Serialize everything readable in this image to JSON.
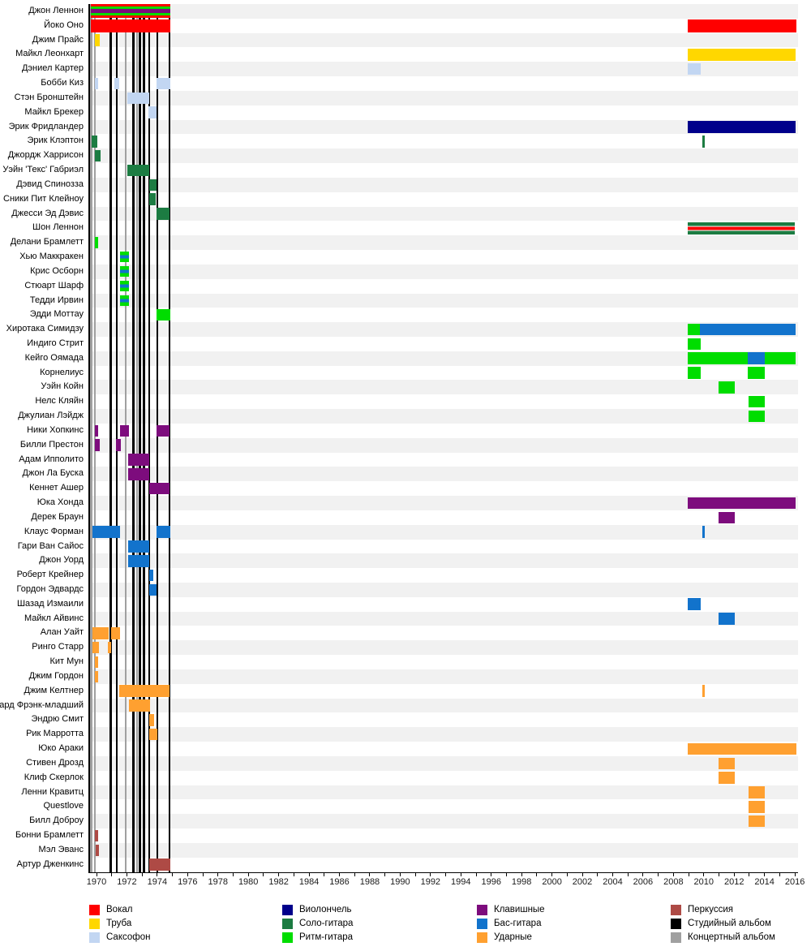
{
  "chart_data": {
    "type": "timeline",
    "title": "",
    "x_axis": {
      "min": 1969.45,
      "max": 2016.2,
      "tick_year_start": 1970,
      "tick_year_end": 2016,
      "tick_step": 1,
      "label_step": 2
    },
    "roles": {
      "vocal": {
        "label": "Вокал",
        "color": "#FF0000"
      },
      "trumpet": {
        "label": "Труба",
        "color": "#FFD700"
      },
      "sax": {
        "label": "Саксофон",
        "color": "#C2D6F2"
      },
      "cello": {
        "label": "Виолончель",
        "color": "#00008B"
      },
      "solo": {
        "label": "Соло-гитара",
        "color": "#1C7C42"
      },
      "rhythm": {
        "label": "Ритм-гитара",
        "color": "#00DD00"
      },
      "keys": {
        "label": "Клавишные",
        "color": "#7D0C7D"
      },
      "bass": {
        "label": "Бас-гитара",
        "color": "#1273CC"
      },
      "drums": {
        "label": "Ударные",
        "color": "#FFA030"
      },
      "perc": {
        "label": "Перкуссия",
        "color": "#AE4A45"
      }
    },
    "albums": {
      "studio_label": "Студийный альбом",
      "live_label": "Концертный альбом",
      "studio_color": "#000000",
      "live_color": "#A0A0A0",
      "lines": [
        {
          "year": 1969.65,
          "type": "live"
        },
        {
          "year": 1969.89,
          "type": "live"
        },
        {
          "year": 1970.93,
          "type": "studio"
        },
        {
          "year": 1971.34,
          "type": "studio"
        },
        {
          "year": 1971.92,
          "type": "live"
        },
        {
          "year": 1972.43,
          "type": "studio"
        },
        {
          "year": 1972.67,
          "type": "live"
        },
        {
          "year": 1972.86,
          "type": "studio"
        },
        {
          "year": 1973.13,
          "type": "studio"
        },
        {
          "year": 1973.47,
          "type": "studio"
        },
        {
          "year": 1974.01,
          "type": "studio"
        },
        {
          "year": 1974.81,
          "type": "studio"
        }
      ]
    },
    "members": [
      {
        "name": "Джон Леннон",
        "segments": [
          {
            "from": 1969.63,
            "to": 1974.86,
            "stack": [
              "vocal",
              "rhythm",
              "keys",
              "rhythm",
              "vocal"
            ],
            "weights": [
              3,
              3,
              5,
              3,
              3
            ],
            "h": 17
          }
        ]
      },
      {
        "name": "Йоко Оно",
        "segments": [
          {
            "from": 1969.63,
            "to": 1974.86,
            "role": "vocal",
            "h": 16
          },
          {
            "from": 2008.95,
            "to": 2016.1,
            "role": "vocal",
            "h": 16
          }
        ]
      },
      {
        "name": "Джим Прайс",
        "segments": [
          {
            "from": 1969.9,
            "to": 1970.22,
            "role": "trumpet"
          }
        ]
      },
      {
        "name": "Майкл Леонхарт",
        "segments": [
          {
            "from": 2008.95,
            "to": 2016.05,
            "role": "trumpet"
          }
        ]
      },
      {
        "name": "Дэниел Картер",
        "segments": [
          {
            "from": 2008.95,
            "to": 2009.8,
            "role": "sax"
          }
        ]
      },
      {
        "name": "Бобби Киз",
        "segments": [
          {
            "from": 1969.9,
            "to": 1970.12,
            "role": "sax"
          },
          {
            "from": 1971.19,
            "to": 1971.5,
            "role": "sax"
          },
          {
            "from": 1973.94,
            "to": 1974.86,
            "role": "sax"
          }
        ]
      },
      {
        "name": "Стэн Бронштейн",
        "segments": [
          {
            "from": 1972.05,
            "to": 1973.47,
            "role": "sax"
          }
        ]
      },
      {
        "name": "Майкл Брекер",
        "segments": [
          {
            "from": 1973.4,
            "to": 1973.97,
            "role": "sax"
          }
        ]
      },
      {
        "name": "Эрик Фридландер",
        "segments": [
          {
            "from": 2008.95,
            "to": 2016.05,
            "role": "cello"
          }
        ]
      },
      {
        "name": "Эрик Клэптон",
        "segments": [
          {
            "from": 1969.66,
            "to": 1970.07,
            "role": "solo"
          },
          {
            "from": 2009.93,
            "to": 2010.07,
            "role": "solo"
          }
        ]
      },
      {
        "name": "Джордж Харрисон",
        "segments": [
          {
            "from": 1969.9,
            "to": 1970.25,
            "role": "solo"
          }
        ]
      },
      {
        "name": "Уэйн 'Текс' Габриэл",
        "segments": [
          {
            "from": 1972.05,
            "to": 1973.47,
            "role": "solo"
          }
        ]
      },
      {
        "name": "Дэвид Спинозза",
        "segments": [
          {
            "from": 1973.46,
            "to": 1973.94,
            "role": "solo"
          }
        ]
      },
      {
        "name": "Сники Пит Клейноу",
        "segments": [
          {
            "from": 1973.46,
            "to": 1973.92,
            "role": "solo"
          }
        ]
      },
      {
        "name": "Джесси Эд Дэвис",
        "segments": [
          {
            "from": 1973.94,
            "to": 1974.83,
            "role": "solo"
          }
        ]
      },
      {
        "name": "Шон Леннон",
        "segments": [
          {
            "from": 2008.95,
            "to": 2016.0,
            "stack": [
              "solo",
              "vocal",
              "solo"
            ],
            "weights": [
              4,
              4,
              4
            ],
            "gaps": true,
            "h": 15
          }
        ]
      },
      {
        "name": "Делани Брамлетт",
        "segments": [
          {
            "from": 1969.9,
            "to": 1970.1,
            "role": "rhythm"
          }
        ]
      },
      {
        "name": "Хью Маккракен",
        "segments": [
          {
            "from": 1971.53,
            "to": 1972.15,
            "stack": [
              "rhythm",
              "bass",
              "rhythm"
            ],
            "weights": [
              4,
              4,
              4
            ],
            "h": 13
          }
        ]
      },
      {
        "name": "Крис Осборн",
        "segments": [
          {
            "from": 1971.53,
            "to": 1972.15,
            "stack": [
              "rhythm",
              "bass",
              "rhythm"
            ],
            "weights": [
              4,
              4,
              4
            ],
            "h": 13
          }
        ]
      },
      {
        "name": "Стюарт Шарф",
        "segments": [
          {
            "from": 1971.53,
            "to": 1972.15,
            "stack": [
              "rhythm",
              "bass",
              "rhythm"
            ],
            "weights": [
              4,
              4,
              4
            ],
            "h": 13
          }
        ]
      },
      {
        "name": "Тедди Ирвин",
        "segments": [
          {
            "from": 1971.53,
            "to": 1972.15,
            "stack": [
              "rhythm",
              "bass",
              "rhythm"
            ],
            "weights": [
              4,
              4,
              4
            ],
            "h": 13
          }
        ]
      },
      {
        "name": "Эдди Моттау",
        "segments": [
          {
            "from": 1973.94,
            "to": 1974.86,
            "role": "rhythm"
          }
        ]
      },
      {
        "name": "Хиротака Симидзу",
        "segments": [
          {
            "from": 2008.95,
            "to": 2009.75,
            "role": "rhythm"
          },
          {
            "from": 2009.75,
            "to": 2016.05,
            "role": "bass"
          }
        ]
      },
      {
        "name": "Индиго Стрит",
        "segments": [
          {
            "from": 2008.95,
            "to": 2009.8,
            "role": "rhythm"
          }
        ]
      },
      {
        "name": "Кейго Оямада",
        "segments": [
          {
            "from": 2008.95,
            "to": 2012.9,
            "role": "rhythm"
          },
          {
            "from": 2012.9,
            "to": 2014.0,
            "role": "bass"
          },
          {
            "from": 2014.0,
            "to": 2016.05,
            "role": "rhythm"
          }
        ]
      },
      {
        "name": "Корнелиус",
        "segments": [
          {
            "from": 2008.95,
            "to": 2009.8,
            "role": "rhythm"
          },
          {
            "from": 2012.9,
            "to": 2014.0,
            "role": "rhythm"
          }
        ]
      },
      {
        "name": "Уэйн Койн",
        "segments": [
          {
            "from": 2010.97,
            "to": 2012.04,
            "role": "rhythm"
          }
        ]
      },
      {
        "name": "Нелс Кляйн",
        "segments": [
          {
            "from": 2012.95,
            "to": 2014.02,
            "role": "rhythm"
          }
        ]
      },
      {
        "name": "Джулиан Лэйдж",
        "segments": [
          {
            "from": 2012.95,
            "to": 2014.02,
            "role": "rhythm"
          }
        ]
      },
      {
        "name": "Ники Хопкинс",
        "segments": [
          {
            "from": 1969.9,
            "to": 1970.13,
            "role": "keys"
          },
          {
            "from": 1971.53,
            "to": 1972.15,
            "role": "keys"
          },
          {
            "from": 1973.94,
            "to": 1974.83,
            "role": "keys"
          }
        ]
      },
      {
        "name": "Билли Престон",
        "segments": [
          {
            "from": 1969.9,
            "to": 1970.22,
            "role": "keys"
          },
          {
            "from": 1971.3,
            "to": 1971.59,
            "role": "keys"
          }
        ]
      },
      {
        "name": "Адам Ипполито",
        "segments": [
          {
            "from": 1972.1,
            "to": 1973.49,
            "role": "keys"
          }
        ]
      },
      {
        "name": "Джон Ла Буска",
        "segments": [
          {
            "from": 1972.1,
            "to": 1973.49,
            "role": "keys"
          }
        ]
      },
      {
        "name": "Кеннет Ашер",
        "segments": [
          {
            "from": 1973.46,
            "to": 1974.81,
            "role": "keys"
          }
        ]
      },
      {
        "name": "Юка Хонда",
        "segments": [
          {
            "from": 2008.95,
            "to": 2016.05,
            "role": "keys"
          }
        ]
      },
      {
        "name": "Дерек Браун",
        "segments": [
          {
            "from": 2010.97,
            "to": 2012.04,
            "role": "keys"
          }
        ]
      },
      {
        "name": "Клаус Форман",
        "segments": [
          {
            "from": 1969.72,
            "to": 1971.55,
            "role": "bass"
          },
          {
            "from": 1973.94,
            "to": 1974.86,
            "role": "bass"
          },
          {
            "from": 2009.93,
            "to": 2010.07,
            "role": "bass"
          }
        ]
      },
      {
        "name": "Гари Ван Сайос",
        "segments": [
          {
            "from": 1972.1,
            "to": 1973.49,
            "role": "bass"
          }
        ]
      },
      {
        "name": "Джон Уорд",
        "segments": [
          {
            "from": 1972.1,
            "to": 1973.49,
            "role": "bass"
          }
        ]
      },
      {
        "name": "Роберт Крейнер",
        "segments": [
          {
            "from": 1973.46,
            "to": 1973.74,
            "role": "bass"
          }
        ]
      },
      {
        "name": "Гордон Эдвардс",
        "segments": [
          {
            "from": 1973.46,
            "to": 1973.97,
            "role": "bass"
          }
        ]
      },
      {
        "name": "Шазад Измаили",
        "segments": [
          {
            "from": 2008.95,
            "to": 2009.8,
            "role": "bass"
          }
        ]
      },
      {
        "name": "Майкл Айвинс",
        "segments": [
          {
            "from": 2010.97,
            "to": 2012.04,
            "role": "bass"
          }
        ]
      },
      {
        "name": "Алан Уайт",
        "segments": [
          {
            "from": 1969.72,
            "to": 1970.79,
            "role": "drums"
          },
          {
            "from": 1970.95,
            "to": 1971.55,
            "role": "drums"
          }
        ]
      },
      {
        "name": "Ринго Старр",
        "segments": [
          {
            "from": 1969.72,
            "to": 1970.14,
            "role": "drums"
          },
          {
            "from": 1970.73,
            "to": 1970.98,
            "role": "drums"
          }
        ]
      },
      {
        "name": "Кит Мун",
        "segments": [
          {
            "from": 1969.9,
            "to": 1970.1,
            "role": "drums"
          }
        ]
      },
      {
        "name": "Джим Гордон",
        "segments": [
          {
            "from": 1969.9,
            "to": 1970.1,
            "role": "drums"
          }
        ]
      },
      {
        "name": "Джим Келтнер",
        "segments": [
          {
            "from": 1971.5,
            "to": 1974.83,
            "role": "drums"
          },
          {
            "from": 2009.93,
            "to": 2010.07,
            "role": "drums"
          }
        ]
      },
      {
        "name": "Ричард Фрэнк-младший",
        "segments": [
          {
            "from": 1972.15,
            "to": 1973.51,
            "role": "drums"
          }
        ]
      },
      {
        "name": "Эндрю Смит",
        "segments": [
          {
            "from": 1973.46,
            "to": 1973.79,
            "role": "drums"
          }
        ]
      },
      {
        "name": "Рик Марротта",
        "segments": [
          {
            "from": 1973.46,
            "to": 1974.02,
            "role": "drums"
          }
        ]
      },
      {
        "name": "Юко Араки",
        "segments": [
          {
            "from": 2008.95,
            "to": 2016.1,
            "role": "drums"
          }
        ]
      },
      {
        "name": "Стивен Дрозд",
        "segments": [
          {
            "from": 2010.97,
            "to": 2012.04,
            "role": "drums"
          }
        ]
      },
      {
        "name": "Клиф Скерлок",
        "segments": [
          {
            "from": 2010.97,
            "to": 2012.04,
            "role": "drums"
          }
        ]
      },
      {
        "name": "Ленни Кравитц",
        "segments": [
          {
            "from": 2012.95,
            "to": 2014.02,
            "role": "drums"
          }
        ]
      },
      {
        "name": "Questlove",
        "segments": [
          {
            "from": 2012.95,
            "to": 2014.02,
            "role": "drums"
          }
        ]
      },
      {
        "name": "Билл Доброу",
        "segments": [
          {
            "from": 2012.95,
            "to": 2014.02,
            "role": "drums"
          }
        ]
      },
      {
        "name": "Бонни Брамлетт",
        "segments": [
          {
            "from": 1969.9,
            "to": 1970.1,
            "role": "perc"
          }
        ]
      },
      {
        "name": "Мэл Эванс",
        "segments": [
          {
            "from": 1969.96,
            "to": 1970.16,
            "role": "perc"
          }
        ]
      },
      {
        "name": "Артур Дженкинс",
        "segments": [
          {
            "from": 1973.46,
            "to": 1974.86,
            "role": "perc"
          }
        ]
      }
    ]
  },
  "legend": {
    "columns": [
      [
        {
          "label": "Вокал",
          "color": "#FF0000"
        },
        {
          "label": "Труба",
          "color": "#FFD700"
        },
        {
          "label": "Саксофон",
          "color": "#C2D6F2"
        }
      ],
      [
        {
          "label": "Виолончель",
          "color": "#00008B"
        },
        {
          "label": "Соло-гитара",
          "color": "#1C7C42"
        },
        {
          "label": "Ритм-гитара",
          "color": "#00DD00"
        }
      ],
      [
        {
          "label": "Клавишные",
          "color": "#7D0C7D"
        },
        {
          "label": "Бас-гитара",
          "color": "#1273CC"
        },
        {
          "label": "Ударные",
          "color": "#FFA030"
        }
      ],
      [
        {
          "label": "Перкуссия",
          "color": "#AE4A45"
        },
        {
          "label": "Студийный альбом",
          "color": "#000000"
        },
        {
          "label": "Концертный альбом",
          "color": "#A0A0A0"
        }
      ]
    ]
  },
  "layout_colors": {
    "stripe_even": "#F1F1F1",
    "stripe_odd": "#FFFFFF"
  }
}
